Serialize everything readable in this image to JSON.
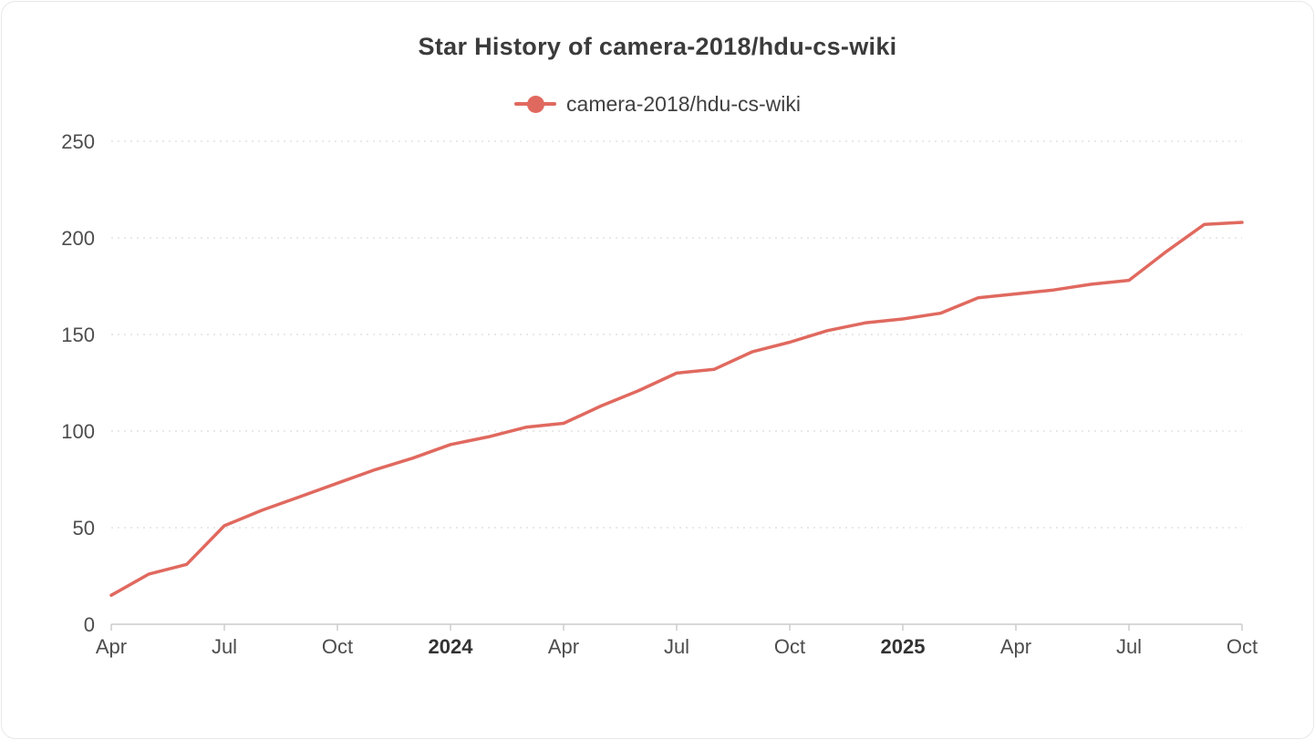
{
  "chart_data": {
    "type": "line",
    "title": "Star History of camera-2018/hdu-cs-wiki",
    "legend_position": "top-center",
    "grid": "horizontal-dotted",
    "ylim": [
      0,
      250
    ],
    "y_ticks": [
      0,
      50,
      100,
      150,
      200,
      250
    ],
    "x_months": [
      "2023-04",
      "2023-05",
      "2023-06",
      "2023-07",
      "2023-08",
      "2023-09",
      "2023-10",
      "2023-11",
      "2023-12",
      "2024-01",
      "2024-02",
      "2024-03",
      "2024-04",
      "2024-05",
      "2024-06",
      "2024-07",
      "2024-08",
      "2024-09",
      "2024-10",
      "2024-11",
      "2024-12",
      "2025-01",
      "2025-02",
      "2025-03",
      "2025-04",
      "2025-05",
      "2025-06",
      "2025-07",
      "2025-08",
      "2025-09",
      "2025-10"
    ],
    "x_ticks": [
      {
        "label": "Apr",
        "index": 0,
        "bold": false
      },
      {
        "label": "Jul",
        "index": 3,
        "bold": false
      },
      {
        "label": "Oct",
        "index": 6,
        "bold": false
      },
      {
        "label": "2024",
        "index": 9,
        "bold": true
      },
      {
        "label": "Apr",
        "index": 12,
        "bold": false
      },
      {
        "label": "Jul",
        "index": 15,
        "bold": false
      },
      {
        "label": "Oct",
        "index": 18,
        "bold": false
      },
      {
        "label": "2025",
        "index": 21,
        "bold": true
      },
      {
        "label": "Apr",
        "index": 24,
        "bold": false
      },
      {
        "label": "Jul",
        "index": 27,
        "bold": false
      },
      {
        "label": "Oct",
        "index": 30,
        "bold": false
      }
    ],
    "series": [
      {
        "name": "camera-2018/hdu-cs-wiki",
        "color": "#e0695f",
        "values": [
          15,
          26,
          31,
          51,
          59,
          66,
          73,
          80,
          86,
          93,
          97,
          102,
          104,
          113,
          121,
          130,
          132,
          141,
          146,
          152,
          156,
          158,
          161,
          169,
          171,
          173,
          176,
          178,
          193,
          207,
          208
        ]
      }
    ]
  }
}
